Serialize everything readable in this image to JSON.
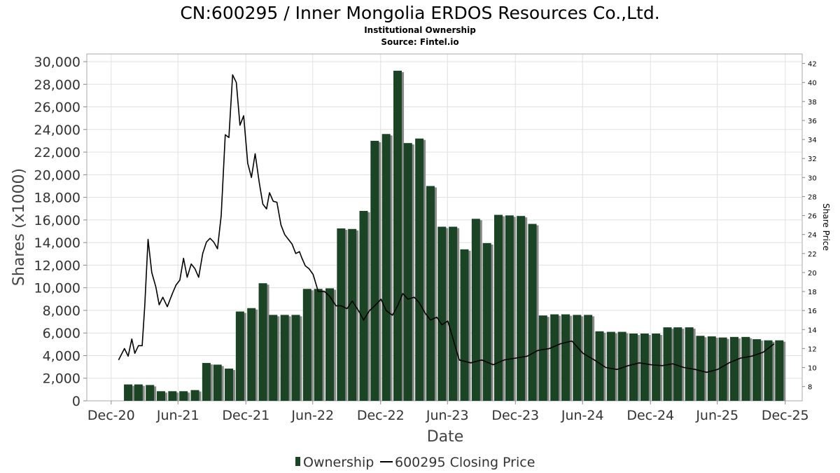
{
  "chart_data": {
    "type": "bar",
    "title": "CN:600295 / Inner Mongolia ERDOS Resources Co.,Ltd.",
    "subtitle": "Institutional Ownership",
    "source": "Source: Fintel.io",
    "xlabel": "Date",
    "ylabel": "Shares (x1000)",
    "y2label": "Share Price",
    "ylim": [
      0,
      30000
    ],
    "y2lim": [
      6.5,
      43
    ],
    "yticks": [
      "0",
      "2,000",
      "4,000",
      "6,000",
      "8,000",
      "10,000",
      "12,000",
      "14,000",
      "16,000",
      "18,000",
      "20,000",
      "22,000",
      "24,000",
      "26,000",
      "28,000",
      "30,000"
    ],
    "y2ticks": [
      "8",
      "10",
      "12",
      "14",
      "16",
      "18",
      "20",
      "22",
      "24",
      "26",
      "28",
      "30",
      "32",
      "34",
      "36",
      "38",
      "40",
      "42"
    ],
    "xticks": [
      {
        "label": "Dec-20",
        "date": "2020-12-31"
      },
      {
        "label": "Jun-21",
        "date": "2021-06-30"
      },
      {
        "label": "Dec-21",
        "date": "2021-12-31"
      },
      {
        "label": "Jun-22",
        "date": "2022-06-30"
      },
      {
        "label": "Dec-22",
        "date": "2022-12-31"
      },
      {
        "label": "Jun-23",
        "date": "2023-06-30"
      },
      {
        "label": "Dec-23",
        "date": "2023-12-31"
      },
      {
        "label": "Jun-24",
        "date": "2024-06-30"
      },
      {
        "label": "Dec-24",
        "date": "2024-12-31"
      },
      {
        "label": "Jun-25",
        "date": "2025-06-30"
      },
      {
        "label": "Dec-25",
        "date": "2025-12-31"
      }
    ],
    "xrange": [
      "2020-10-26",
      "2026-02-15"
    ],
    "grid": true,
    "legend_position": "bottom",
    "series": [
      {
        "name": "Ownership",
        "type": "bar",
        "color": "#1a4423",
        "x": [
          "2021-02-15",
          "2021-03-15",
          "2021-04-15",
          "2021-05-15",
          "2021-06-15",
          "2021-07-15",
          "2021-08-15",
          "2021-09-15",
          "2021-10-15",
          "2021-11-15",
          "2021-12-15",
          "2022-01-15",
          "2022-02-15",
          "2022-03-15",
          "2022-04-15",
          "2022-05-15",
          "2022-06-15",
          "2022-07-15",
          "2022-08-15",
          "2022-09-15",
          "2022-10-15",
          "2022-11-15",
          "2022-12-15",
          "2023-01-15",
          "2023-02-15",
          "2023-03-15",
          "2023-04-15",
          "2023-05-15",
          "2023-06-15",
          "2023-07-15",
          "2023-08-15",
          "2023-09-15",
          "2023-10-15",
          "2023-11-15",
          "2023-12-15",
          "2024-01-15",
          "2024-02-15",
          "2024-03-15",
          "2024-04-15",
          "2024-05-15",
          "2024-06-15",
          "2024-07-15",
          "2024-08-15",
          "2024-09-15",
          "2024-10-15",
          "2024-11-15",
          "2024-12-15",
          "2025-01-15",
          "2025-02-15",
          "2025-03-15",
          "2025-04-15",
          "2025-05-15",
          "2025-06-15",
          "2025-07-15",
          "2025-08-15",
          "2025-09-15",
          "2025-10-15",
          "2025-11-15",
          "2025-12-15"
        ],
        "values": [
          1450,
          1450,
          1400,
          850,
          850,
          850,
          950,
          3350,
          3200,
          2850,
          7900,
          8200,
          10400,
          7600,
          7600,
          7600,
          9900,
          9900,
          9950,
          15250,
          15200,
          16800,
          23000,
          23600,
          29200,
          22800,
          23200,
          19000,
          15400,
          15400,
          13400,
          16100,
          13950,
          16450,
          16400,
          16350,
          15650,
          7550,
          7650,
          7650,
          7600,
          7600,
          6150,
          6100,
          6100,
          5950,
          5950,
          5950,
          6500,
          6500,
          6500,
          5750,
          5700,
          5600,
          5650,
          5650,
          5450,
          5350,
          5350
        ]
      },
      {
        "name": "600295 Closing Price",
        "type": "line",
        "color": "#000000",
        "x": [
          "2021-01-20",
          "2021-02-05",
          "2021-02-15",
          "2021-02-25",
          "2021-03-05",
          "2021-03-15",
          "2021-03-25",
          "2021-04-01",
          "2021-04-10",
          "2021-04-20",
          "2021-05-01",
          "2021-05-10",
          "2021-05-20",
          "2021-06-01",
          "2021-06-15",
          "2021-06-25",
          "2021-07-05",
          "2021-07-15",
          "2021-07-25",
          "2021-08-05",
          "2021-08-15",
          "2021-08-25",
          "2021-09-05",
          "2021-09-15",
          "2021-09-25",
          "2021-10-05",
          "2021-10-15",
          "2021-10-25",
          "2021-11-05",
          "2021-11-15",
          "2021-11-25",
          "2021-12-05",
          "2021-12-15",
          "2021-12-25",
          "2022-01-05",
          "2022-01-15",
          "2022-01-25",
          "2022-02-05",
          "2022-02-15",
          "2022-02-25",
          "2022-03-05",
          "2022-03-15",
          "2022-03-25",
          "2022-04-05",
          "2022-04-15",
          "2022-04-25",
          "2022-05-05",
          "2022-05-15",
          "2022-05-25",
          "2022-06-01",
          "2022-06-10",
          "2022-06-20",
          "2022-07-01",
          "2022-07-15",
          "2022-08-01",
          "2022-08-15",
          "2022-09-01",
          "2022-09-15",
          "2022-10-01",
          "2022-10-15",
          "2022-11-01",
          "2022-11-15",
          "2022-12-01",
          "2022-12-15",
          "2023-01-01",
          "2023-01-15",
          "2023-02-01",
          "2023-02-15",
          "2023-03-01",
          "2023-03-15",
          "2023-04-01",
          "2023-04-15",
          "2023-05-01",
          "2023-05-15",
          "2023-06-01",
          "2023-06-15",
          "2023-07-01",
          "2023-08-01",
          "2023-09-01",
          "2023-10-01",
          "2023-11-01",
          "2023-12-01",
          "2024-01-01",
          "2024-02-01",
          "2024-03-01",
          "2024-04-01",
          "2024-05-01",
          "2024-06-01",
          "2024-07-01",
          "2024-08-01",
          "2024-09-01",
          "2024-10-01",
          "2024-11-01",
          "2024-12-01",
          "2025-01-01",
          "2025-02-01",
          "2025-03-01",
          "2025-04-01",
          "2025-05-01",
          "2025-06-01",
          "2025-07-01",
          "2025-08-01",
          "2025-09-01",
          "2025-10-01",
          "2025-11-01",
          "2025-12-01"
        ],
        "values": [
          10.8,
          12,
          11.2,
          13,
          11.5,
          12.3,
          12.3,
          16.5,
          23.5,
          20,
          18.5,
          16.6,
          17.4,
          16.4,
          17.8,
          18.7,
          19.2,
          21.5,
          19.5,
          20.9,
          20.4,
          19.5,
          22,
          23.2,
          23.6,
          23.2,
          22.5,
          26,
          34.5,
          34.2,
          40.8,
          40,
          35.5,
          36.5,
          31.5,
          30,
          32.5,
          29.5,
          27.2,
          26.7,
          28.4,
          27.5,
          27.4,
          25,
          24,
          23.5,
          23,
          22,
          22.2,
          21.5,
          20.7,
          20.4,
          19.8,
          18,
          18,
          17.5,
          16.5,
          16.5,
          16.2,
          17,
          16,
          15,
          16,
          16.5,
          17.2,
          16,
          15.5,
          16.5,
          17.8,
          17.2,
          17.4,
          16.8,
          15.7,
          15,
          15.3,
          14.5,
          14.9,
          10.8,
          10.5,
          10.8,
          10.3,
          10.8,
          11,
          11.2,
          11.8,
          12,
          12.5,
          12.8,
          11.5,
          10.8,
          10,
          9.8,
          10.2,
          10.5,
          10.3,
          10.2,
          10.4,
          10,
          9.8,
          9.5,
          9.8,
          10.5,
          11,
          11.2,
          11.6,
          12.5
        ]
      }
    ]
  }
}
